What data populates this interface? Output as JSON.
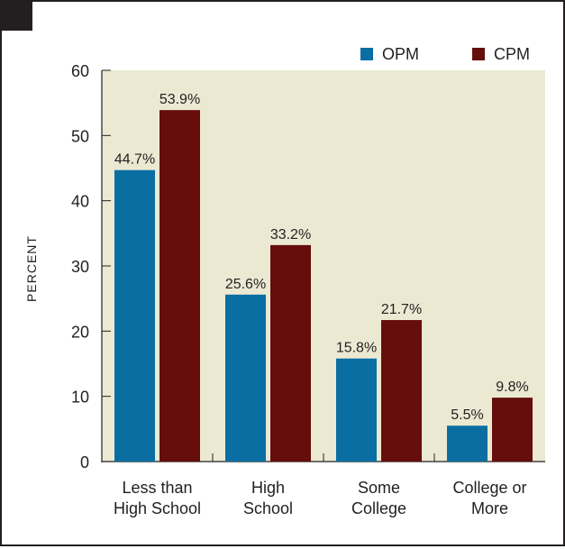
{
  "chart_data": {
    "type": "bar",
    "categories": [
      [
        "Less than",
        "High School"
      ],
      [
        "High",
        "School"
      ],
      [
        "Some",
        "College"
      ],
      [
        "College or",
        "More"
      ]
    ],
    "series": [
      {
        "name": "OPM",
        "color": "#0a6ea3",
        "values": [
          44.7,
          25.6,
          15.8,
          5.5
        ],
        "labels": [
          "44.7%",
          "25.6%",
          "15.8%",
          "5.5%"
        ]
      },
      {
        "name": "CPM",
        "color": "#650e0c",
        "values": [
          53.9,
          33.2,
          21.7,
          9.8
        ],
        "labels": [
          "53.9%",
          "33.2%",
          "21.7%",
          "9.8%"
        ]
      }
    ],
    "ylabel": "PERCENT",
    "ylim": [
      0,
      60
    ],
    "yticks": [
      "0",
      "10",
      "20",
      "30",
      "40",
      "50",
      "60"
    ],
    "plot_background": "#ece9d3",
    "grid": false,
    "legend_position": "top-right"
  }
}
